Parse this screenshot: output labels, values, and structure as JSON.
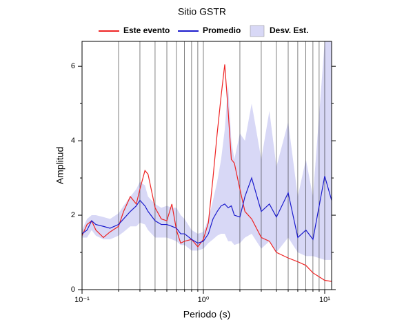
{
  "chart_data": {
    "type": "line",
    "title": "Sitio GSTR",
    "xlabel": "Periodo (s)",
    "ylabel": "Amplitud",
    "xscale": "log",
    "x": [
      0.1,
      0.11,
      0.12,
      0.13,
      0.15,
      0.17,
      0.2,
      0.22,
      0.25,
      0.28,
      0.3,
      0.33,
      0.35,
      0.4,
      0.45,
      0.5,
      0.55,
      0.6,
      0.65,
      0.7,
      0.8,
      0.9,
      1.0,
      1.1,
      1.2,
      1.3,
      1.4,
      1.5,
      1.6,
      1.7,
      1.8,
      2.0,
      2.2,
      2.5,
      3.0,
      3.5,
      4.0,
      5.0,
      6.0,
      7.0,
      8.0,
      10,
      11.4
    ],
    "series": [
      {
        "name": "Este evento",
        "color": "#ee2222",
        "values": [
          1.45,
          1.75,
          1.85,
          1.6,
          1.4,
          1.55,
          1.7,
          2.1,
          2.5,
          2.3,
          2.7,
          3.2,
          3.1,
          2.2,
          1.9,
          1.85,
          2.3,
          1.6,
          1.25,
          1.3,
          1.35,
          1.15,
          1.35,
          1.8,
          3.0,
          4.2,
          5.2,
          6.05,
          4.8,
          3.5,
          3.4,
          2.7,
          2.1,
          1.9,
          1.4,
          1.3,
          1.0,
          0.85,
          0.75,
          0.65,
          0.45,
          0.25,
          0.22
        ]
      },
      {
        "name": "Promedio",
        "color": "#1a1acc",
        "values": [
          1.5,
          1.6,
          1.85,
          1.75,
          1.7,
          1.65,
          1.75,
          1.9,
          2.1,
          2.25,
          2.4,
          2.25,
          2.1,
          1.85,
          1.75,
          1.75,
          1.7,
          1.65,
          1.5,
          1.5,
          1.35,
          1.25,
          1.3,
          1.5,
          1.9,
          2.1,
          2.25,
          2.3,
          2.2,
          2.25,
          2.0,
          1.95,
          2.5,
          3.0,
          2.1,
          2.3,
          1.95,
          2.6,
          1.4,
          1.6,
          1.35,
          3.05,
          2.4
        ]
      },
      {
        "name": "Desv. Est.",
        "color": "#d8d8f6",
        "band": true,
        "lower": [
          1.4,
          1.4,
          1.6,
          1.45,
          1.35,
          1.35,
          1.45,
          1.55,
          1.7,
          1.7,
          1.8,
          1.75,
          1.6,
          1.4,
          1.4,
          1.4,
          1.35,
          1.3,
          1.2,
          1.2,
          1.05,
          1.05,
          1.1,
          1.25,
          1.35,
          1.45,
          1.5,
          1.5,
          1.3,
          1.3,
          1.2,
          1.25,
          1.4,
          1.5,
          1.1,
          1.3,
          1.0,
          1.4,
          1.0,
          0.9,
          0.9,
          0.8,
          0.8
        ],
        "upper": [
          1.6,
          1.9,
          2.0,
          2.0,
          1.95,
          1.9,
          2.05,
          2.25,
          2.5,
          2.7,
          2.9,
          2.8,
          2.5,
          2.3,
          2.2,
          2.25,
          2.2,
          2.2,
          2.0,
          1.9,
          1.6,
          1.5,
          1.55,
          1.9,
          2.4,
          2.9,
          3.5,
          4.3,
          5.5,
          4.0,
          3.5,
          4.2,
          4.0,
          5.0,
          3.5,
          4.8,
          3.3,
          4.5,
          2.5,
          3.5,
          2.5,
          6.67,
          6.67
        ]
      }
    ],
    "xlim": [
      0.1,
      11.4
    ],
    "ylim": [
      0,
      6.67
    ],
    "xticks": [
      {
        "value": 0.1,
        "label": "10⁻¹"
      },
      {
        "value": 1,
        "label": "10⁰"
      },
      {
        "value": 10,
        "label": "10¹"
      }
    ],
    "xminorticks": [
      0.2,
      0.3,
      0.4,
      0.5,
      0.6,
      0.7,
      0.8,
      0.9,
      2,
      3,
      4,
      5,
      6,
      7,
      8,
      9
    ],
    "yticks": [
      0,
      2,
      4,
      6
    ],
    "yminorticks": [
      1,
      3,
      5
    ],
    "grid": true
  }
}
